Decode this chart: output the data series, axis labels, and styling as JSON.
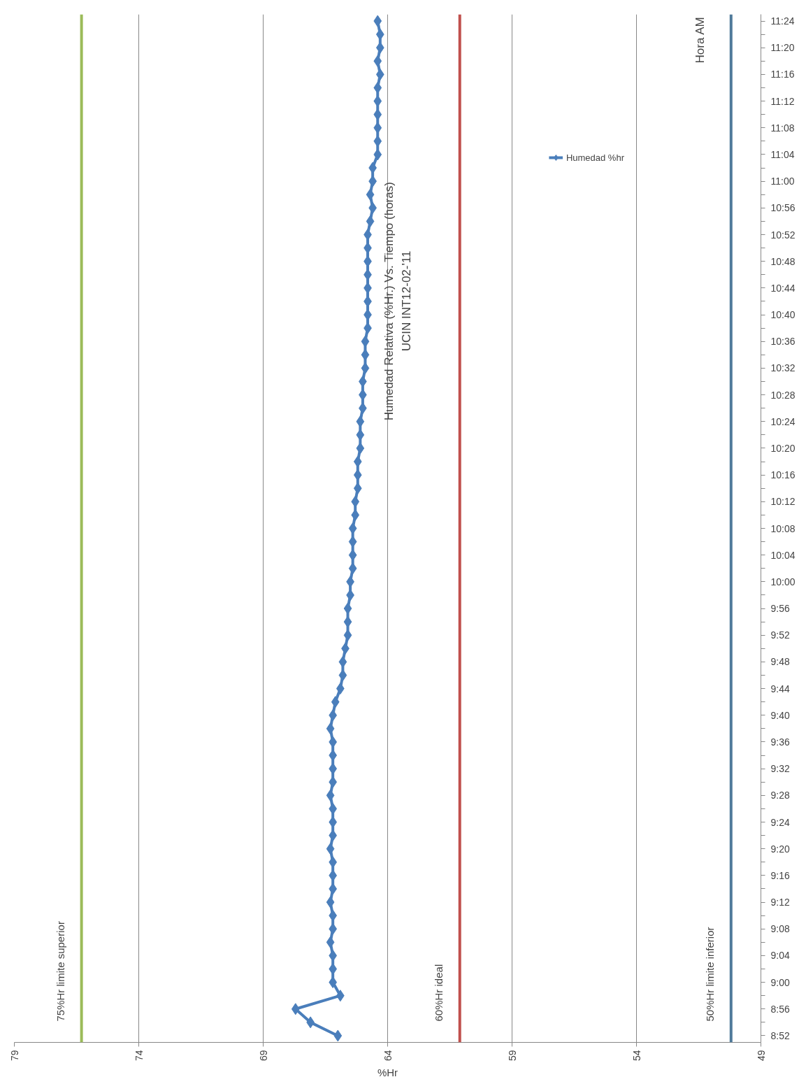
{
  "chart_data": {
    "type": "line",
    "orientation": "horizontal",
    "title": "Humedad Relativa (%Hr.) Vs. Tiempo (horas)",
    "subtitle": "UCIN INT12-02-'11",
    "xlabel": "%Hr",
    "ylabel": "Hora AM",
    "categories": [
      "11:24",
      null,
      "11:20",
      null,
      "11:16",
      null,
      "11:12",
      null,
      "11:08",
      null,
      "11:04",
      null,
      "11:00",
      null,
      "10:56",
      null,
      "10:52",
      null,
      "10:48",
      null,
      "10:44",
      null,
      "10:40",
      null,
      "10:36",
      null,
      "10:32",
      null,
      "10:28",
      null,
      "10:24",
      null,
      "10:20",
      null,
      "10:16",
      null,
      "10:12",
      null,
      "10:08",
      null,
      "10:04",
      null,
      "10:00",
      null,
      "9:56",
      null,
      "9:52",
      null,
      "9:48",
      null,
      "9:44",
      null,
      "9:40",
      null,
      "9:36",
      null,
      "9:32",
      null,
      "9:28",
      null,
      "9:24",
      null,
      "9:20",
      null,
      "9:16",
      null,
      "9:12",
      null,
      "9:08",
      null,
      "9:04",
      null,
      "9:00",
      null,
      "8:56",
      null,
      "8:52"
    ],
    "series": [
      {
        "name": "Humedad %hr",
        "color": "#4a7ebb",
        "values": [
          64.4,
          64.3,
          64.3,
          64.4,
          64.3,
          64.4,
          64.4,
          64.4,
          64.4,
          64.4,
          64.4,
          64.6,
          64.6,
          64.7,
          64.6,
          64.7,
          64.8,
          64.8,
          64.8,
          64.8,
          64.8,
          64.8,
          64.8,
          64.8,
          64.9,
          64.9,
          64.9,
          65.0,
          65.0,
          65.0,
          65.1,
          65.1,
          65.1,
          65.2,
          65.2,
          65.2,
          65.3,
          65.3,
          65.4,
          65.4,
          65.4,
          65.4,
          65.5,
          65.5,
          65.6,
          65.6,
          65.6,
          65.7,
          65.8,
          65.8,
          65.9,
          66.1,
          66.2,
          66.3,
          66.2,
          66.2,
          66.2,
          66.2,
          66.3,
          66.2,
          66.2,
          66.2,
          66.3,
          66.2,
          66.2,
          66.2,
          66.3,
          66.2,
          66.2,
          66.3,
          66.2,
          66.2,
          66.2,
          65.9,
          67.7,
          67.1,
          66.0
        ]
      }
    ],
    "xlim": [
      79,
      49
    ],
    "xticks": [
      79,
      74,
      69,
      64,
      59,
      54,
      49
    ],
    "ref_lines": [
      {
        "axis": "x",
        "value": 76.3,
        "label": "75%Hr limite superior",
        "color": "#9bbb59"
      },
      {
        "axis": "x",
        "value": 61.1,
        "label": "60%Hr ideal",
        "color": "#c0504d"
      },
      {
        "axis": "x",
        "value": 50.2,
        "label": "50%Hr limite inferior",
        "color": "#4f7a9a"
      }
    ],
    "grid": "x",
    "legend": "top right",
    "marker": "diamond",
    "line_style": "solid"
  }
}
